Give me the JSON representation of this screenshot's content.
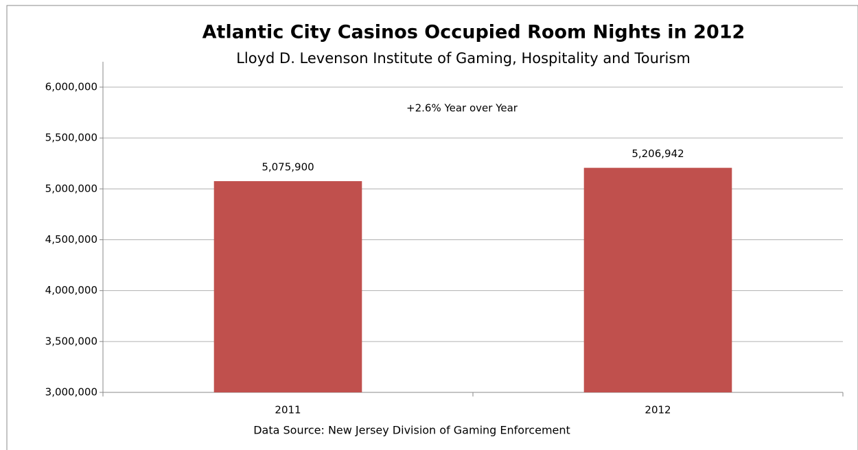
{
  "chart_data": {
    "type": "bar",
    "title": "Atlantic City Casinos Occupied Room Nights in 2012",
    "subtitle": "Lloyd D. Levenson Institute of Gaming, Hospitality and Tourism",
    "annotation": "+2.6% Year over Year",
    "source": "Data Source: New Jersey Division of Gaming Enforcement",
    "categories": [
      "2011",
      "2012"
    ],
    "values": [
      5075900,
      5206942
    ],
    "value_labels": [
      "5,075,900",
      "5,206,942"
    ],
    "color": "#c0504d",
    "ylim": [
      3000000,
      6000000
    ],
    "yticks": [
      {
        "value": 3000000,
        "label": "3,000,000"
      },
      {
        "value": 3500000,
        "label": "3,500,000"
      },
      {
        "value": 4000000,
        "label": "4,000,000"
      },
      {
        "value": 4500000,
        "label": "4,500,000"
      },
      {
        "value": 5000000,
        "label": "5,000,000"
      },
      {
        "value": 5500000,
        "label": "5,500,000"
      },
      {
        "value": 6000000,
        "label": "6,000,000"
      }
    ],
    "grid": true
  }
}
